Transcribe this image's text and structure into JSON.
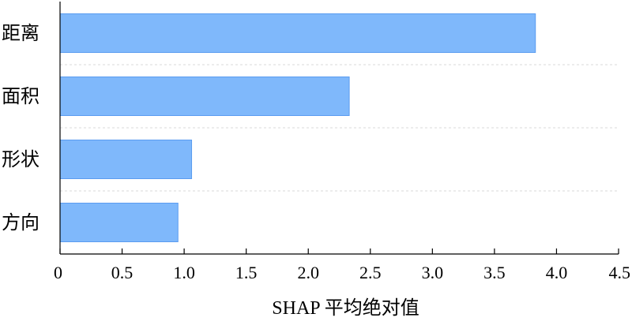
{
  "chart_data": {
    "type": "bar",
    "orientation": "horizontal",
    "categories": [
      "距离",
      "面积",
      "形状",
      "方向"
    ],
    "values": [
      3.83,
      2.33,
      1.06,
      0.95
    ],
    "xlabel": "SHAP 平均绝对值",
    "ylabel": "",
    "xlim": [
      0,
      4.5
    ],
    "xticks": [
      0,
      0.5,
      1.0,
      1.5,
      2.0,
      2.5,
      3.0,
      3.5,
      4.0,
      4.5
    ],
    "xtick_labels": [
      "0",
      "0.5",
      "1.0",
      "1.5",
      "2.0",
      "2.5",
      "3.0",
      "3.5",
      "4.0",
      "4.5"
    ],
    "grid": "horizontal dashed separators between bars",
    "legend": "none",
    "colors": {
      "bar_fill": "#7fb8fb",
      "bar_stroke": "#5b9cf0",
      "axis": "#000000",
      "separator": "#d9d9d9"
    }
  }
}
